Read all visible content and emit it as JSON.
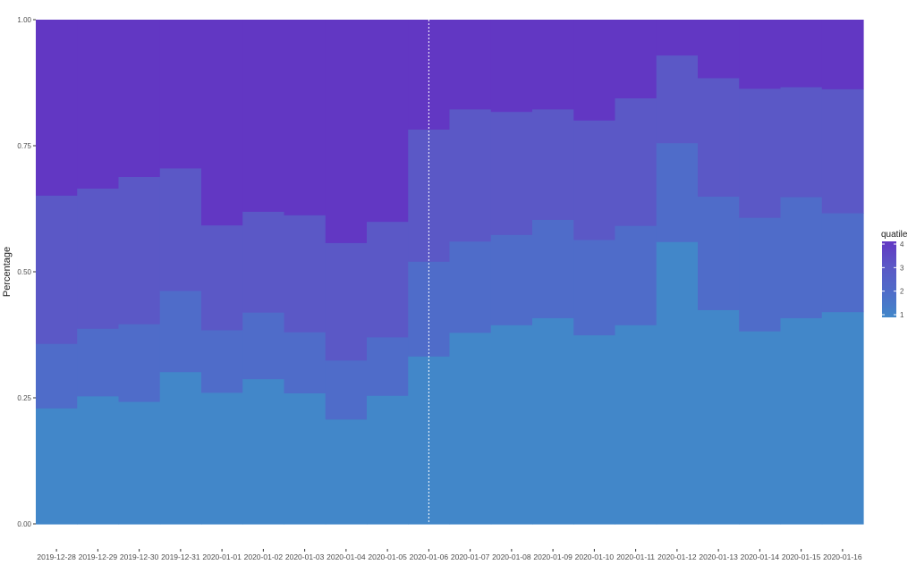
{
  "chart_data": {
    "type": "area",
    "stacking": "fill",
    "step": true,
    "categories": [
      "2019-12-28",
      "2019-12-29",
      "2019-12-30",
      "2019-12-31",
      "2020-01-01",
      "2020-01-02",
      "2020-01-03",
      "2020-01-04",
      "2020-01-05",
      "2020-01-06",
      "2020-01-07",
      "2020-01-08",
      "2020-01-09",
      "2020-01-10",
      "2020-01-11",
      "2020-01-12",
      "2020-01-13",
      "2020-01-14",
      "2020-01-15",
      "2020-01-16"
    ],
    "series": [
      {
        "name": "1",
        "values": [
          0.23,
          0.254,
          0.243,
          0.302,
          0.261,
          0.288,
          0.26,
          0.208,
          0.255,
          0.333,
          0.38,
          0.395,
          0.409,
          0.375,
          0.395,
          0.56,
          0.425,
          0.383,
          0.409,
          0.421
        ]
      },
      {
        "name": "2",
        "values": [
          0.128,
          0.134,
          0.154,
          0.161,
          0.124,
          0.132,
          0.121,
          0.117,
          0.116,
          0.188,
          0.181,
          0.179,
          0.195,
          0.189,
          0.197,
          0.196,
          0.225,
          0.225,
          0.24,
          0.196
        ]
      },
      {
        "name": "3",
        "values": [
          0.294,
          0.278,
          0.292,
          0.243,
          0.208,
          0.2,
          0.232,
          0.233,
          0.229,
          0.262,
          0.262,
          0.244,
          0.219,
          0.237,
          0.253,
          0.174,
          0.235,
          0.256,
          0.218,
          0.246
        ]
      },
      {
        "name": "4",
        "values": [
          0.348,
          0.334,
          0.311,
          0.294,
          0.407,
          0.38,
          0.387,
          0.442,
          0.4,
          0.217,
          0.177,
          0.182,
          0.177,
          0.199,
          0.155,
          0.07,
          0.115,
          0.136,
          0.133,
          0.137
        ]
      }
    ],
    "colors": [
      "#4287c9",
      "#4f6cc9",
      "#5b58c6",
      "#6237c3"
    ],
    "ylabel": "Percentage",
    "xlabel": "",
    "ylim": [
      0,
      1
    ],
    "yticks": [
      "0.00",
      "0.25",
      "0.50",
      "0.75",
      "1.00"
    ],
    "vline": "2020-01-06",
    "grid": false,
    "legend": {
      "title": "quatile",
      "placement": "right",
      "labels": [
        "1",
        "2",
        "3",
        "4"
      ]
    }
  }
}
